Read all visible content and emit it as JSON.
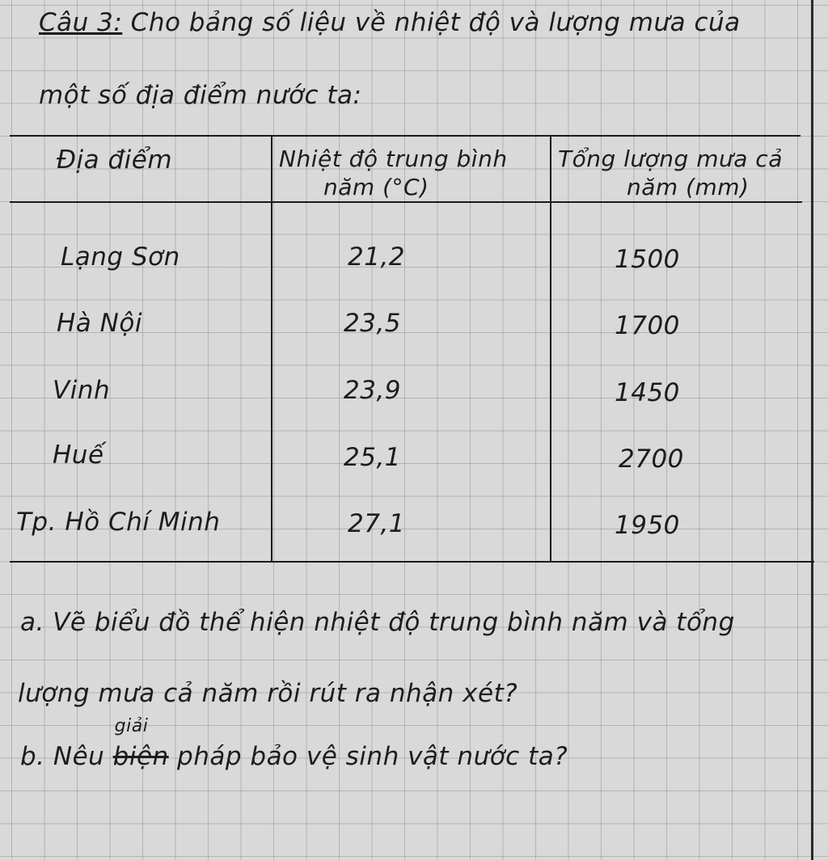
{
  "question": {
    "label": "Câu 3:",
    "intro_line1": "Cho bảng số liệu về nhiệt độ và lượng mưa của",
    "intro_line2": "một số địa điểm nước ta:"
  },
  "table": {
    "headers": [
      "Địa điểm",
      "Nhiệt độ trung bình",
      "năm (°C)",
      "Tổng lượng mưa cả",
      "năm (mm)"
    ],
    "rows": [
      {
        "place": "Lạng Sơn",
        "temp": "21,2",
        "rain": "1500"
      },
      {
        "place": "Hà Nội",
        "temp": "23,5",
        "rain": "1700"
      },
      {
        "place": "Vinh",
        "temp": "23,9",
        "rain": "1450"
      },
      {
        "place": "Huế",
        "temp": "25,1",
        "rain": "2700"
      },
      {
        "place": "Tp. Hồ Chí Minh",
        "temp": "27,1",
        "rain": "1950"
      }
    ]
  },
  "part_a": {
    "line1": "a. Vẽ biểu đồ thể hiện nhiệt độ trung bình năm và tổng",
    "line2": "lượng mưa cả năm rồi rút ra nhận xét?"
  },
  "part_b": {
    "prefix": "b. Nêu",
    "struck": "biện",
    "inserted": "giải",
    "rest": "pháp bảo vệ sinh vật nước ta?"
  }
}
